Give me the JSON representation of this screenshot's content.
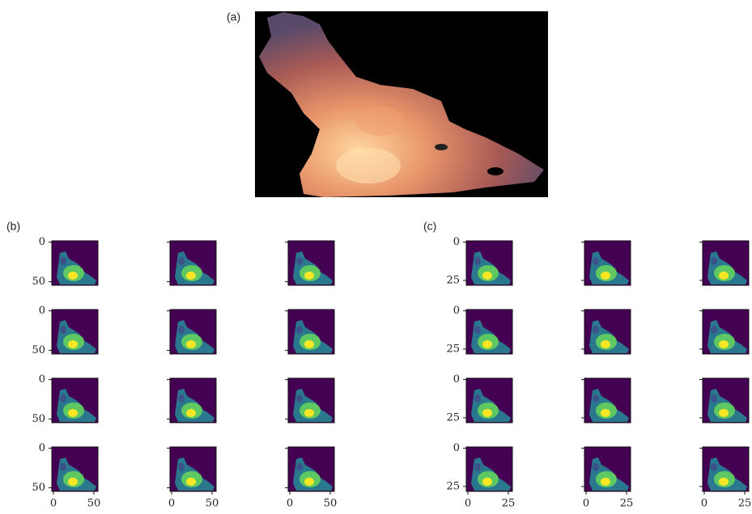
{
  "panels": {
    "a": {
      "label": "(a)"
    },
    "b": {
      "label": "(b)",
      "y_tick_labels": [
        "0",
        "50"
      ],
      "x_tick_labels": [
        "0",
        "50"
      ]
    },
    "c": {
      "label": "(c)",
      "y_tick_labels": [
        "0",
        "25"
      ],
      "x_tick_labels": [
        "0",
        "25"
      ]
    }
  }
}
